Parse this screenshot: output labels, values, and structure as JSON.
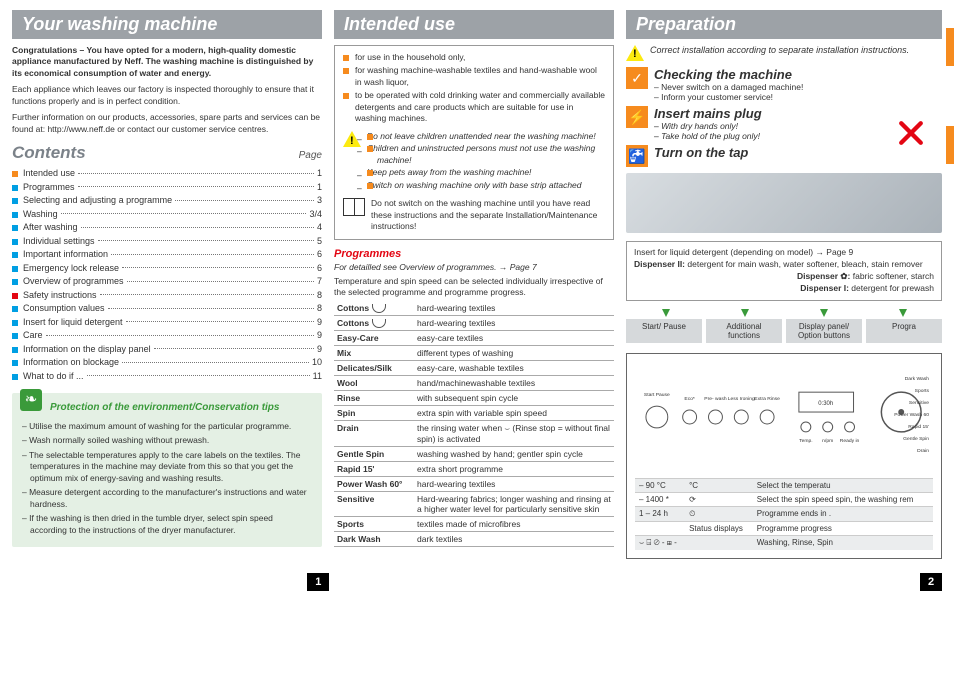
{
  "banners": {
    "left": "Your washing machine",
    "mid": "Intended use",
    "right": "Preparation"
  },
  "intro": {
    "p1": "Congratulations – You have opted for a modern, high-quality domestic appliance manufactured by Neff. The washing machine is distinguished by its economical consumption of water and energy.",
    "p2": "Each appliance which leaves our factory is inspected thoroughly to ensure that it functions properly and is in perfect condition.",
    "p3": "Further information on our products, accessories, spare parts and services can be found at: http://www.neff.de or contact our customer service centres."
  },
  "contents": {
    "heading": "Contents",
    "page_label": "Page",
    "items": [
      {
        "c": "orange",
        "t": "Intended use",
        "p": "1"
      },
      {
        "c": "blue",
        "t": "Programmes",
        "p": "1"
      },
      {
        "c": "blue",
        "t": "Selecting and adjusting a programme",
        "p": "3"
      },
      {
        "c": "blue",
        "t": "Washing",
        "p": "3/4"
      },
      {
        "c": "blue",
        "t": "After washing",
        "p": "4"
      },
      {
        "c": "blue",
        "t": "Individual settings",
        "p": "5"
      },
      {
        "c": "blue",
        "t": "Important information",
        "p": "6"
      },
      {
        "c": "blue",
        "t": "Emergency lock release",
        "p": "6"
      },
      {
        "c": "blue",
        "t": "Overview of programmes",
        "p": "7"
      },
      {
        "c": "red",
        "t": "Safety instructions",
        "p": "8"
      },
      {
        "c": "blue",
        "t": "Consumption values",
        "p": "8"
      },
      {
        "c": "blue",
        "t": "Insert for liquid detergent",
        "p": "9"
      },
      {
        "c": "blue",
        "t": "Care",
        "p": "9"
      },
      {
        "c": "blue",
        "t": "Information on the display panel",
        "p": "9"
      },
      {
        "c": "blue",
        "t": "Information on blockage",
        "p": "10"
      },
      {
        "c": "blue",
        "t": "What to do if ...",
        "p": "11"
      }
    ]
  },
  "eco": {
    "title": "Protection of the environment/Conservation tips",
    "items": [
      "Utilise the maximum amount of washing for the particular programme.",
      "Wash normally soiled washing without prewash.",
      "The selectable temperatures apply to the care labels on the textiles. The temperatures in the machine may deviate from this so that you get the optimum mix of energy-saving and washing results.",
      "Measure detergent according to the manufacturer's instructions and water hardness.",
      "If the washing is then dried in the tumble dryer, select spin speed according to the instructions of the dryer manufacturer."
    ]
  },
  "intended": {
    "bullets": [
      "for use in the household only,",
      "for washing machine-washable textiles and hand-washable wool in wash liquor,",
      "to be operated with cold drinking water and commercially available detergents and care products which are suitable for use in washing machines."
    ],
    "warn": [
      "Do not leave children unattended near the washing machine!",
      "Children and uninstructed persons must not use the washing machine!",
      "Keep pets away from the washing machine!",
      "Switch on washing machine only with base strip attached"
    ],
    "book": "Do not switch on the washing machine until you have read these instructions and the separate Installation/Maintenance instructions!"
  },
  "programmes": {
    "heading": "Programmes",
    "note1": "For detailled see Overview of programmes. → Page 7",
    "note2": "Temperature and spin speed can be selected individually irrespective of the selected programme and programme progress.",
    "rows": [
      [
        "Cottons",
        "hard-wearing textiles"
      ],
      [
        "Cottons",
        "hard-wearing textiles"
      ],
      [
        "Easy-Care",
        "easy-care textiles"
      ],
      [
        "Mix",
        "different types of washing"
      ],
      [
        "Delicates/Silk",
        "easy-care, washable textiles"
      ],
      [
        "Wool",
        "hand/machinewashable textiles"
      ],
      [
        "Rinse",
        "with subsequent spin cycle"
      ],
      [
        "Spin",
        "extra spin with variable spin speed"
      ],
      [
        "Drain",
        "the rinsing water when ⌣ (Rinse stop = without final spin) is activated"
      ],
      [
        "Gentle Spin",
        "washing washed by hand; gentler spin cycle"
      ],
      [
        "Rapid 15'",
        "extra short programme"
      ],
      [
        "Power Wash 60°",
        "hard-wearing textiles"
      ],
      [
        "Sensitive",
        "Hard-wearing fabrics; longer washing and rinsing at a higher water level for particularly sensitive skin"
      ],
      [
        "Sports",
        "textiles made of microfibres"
      ],
      [
        "Dark Wash",
        "dark textiles"
      ]
    ]
  },
  "prep": {
    "install_note": "Correct installation according to separate installation instructions.",
    "steps": [
      {
        "icon": "✓",
        "title": "Checking the machine",
        "items": [
          "Never switch on a damaged machine!",
          "Inform your customer service!"
        ]
      },
      {
        "icon": "⚡",
        "title": "Insert mains plug",
        "items": [
          "With dry hands only!",
          "Take hold of the plug only!"
        ],
        "italic": true
      },
      {
        "icon": "🚰",
        "title": "Turn on the tap",
        "items": []
      }
    ]
  },
  "dispenser": {
    "intro": "Insert for liquid detergent (depending on model) → Page 9",
    "d2_l": "Dispenser II:",
    "d2": " detergent for main wash, water softener, bleach, stain remover",
    "df_l": "Dispenser ✿:",
    "df": " fabric softener, starch",
    "d1_l": "Dispenser I:",
    "d1": " detergent for prewash"
  },
  "panel": {
    "headers": [
      "Start/\nPause",
      "Additional functions",
      "Display panel/\nOption buttons",
      "Progra"
    ],
    "btn_labels": [
      "Start\nPause",
      "Eco*",
      "Pre-\nwash",
      "Less\nIroning",
      "Extra\nRinse"
    ],
    "opt_labels": [
      "Temp.",
      "n/pm",
      "Ready in"
    ],
    "prog_labels": [
      "Dark Wash",
      "Sports",
      "Sensitive",
      "Power\nWash 60",
      "Rapid 15'",
      "Gentle Spin",
      "Drain"
    ],
    "side": [
      [
        "– 90 °C",
        "°C",
        "Select the temperatu"
      ],
      [
        "– 1400 *",
        "⟳",
        "Select the spin speed\nspin, the washing rem"
      ],
      [
        "1 – 24 h",
        "⏲",
        "Programme ends in ."
      ],
      [
        "",
        "Status displays",
        "Programme progress"
      ],
      [
        "⌣  ⍈  ⊘ - ⊞ -",
        "",
        "Washing, Rinse, Spin"
      ]
    ]
  },
  "footer": {
    "p1": "1",
    "p2": "2"
  }
}
